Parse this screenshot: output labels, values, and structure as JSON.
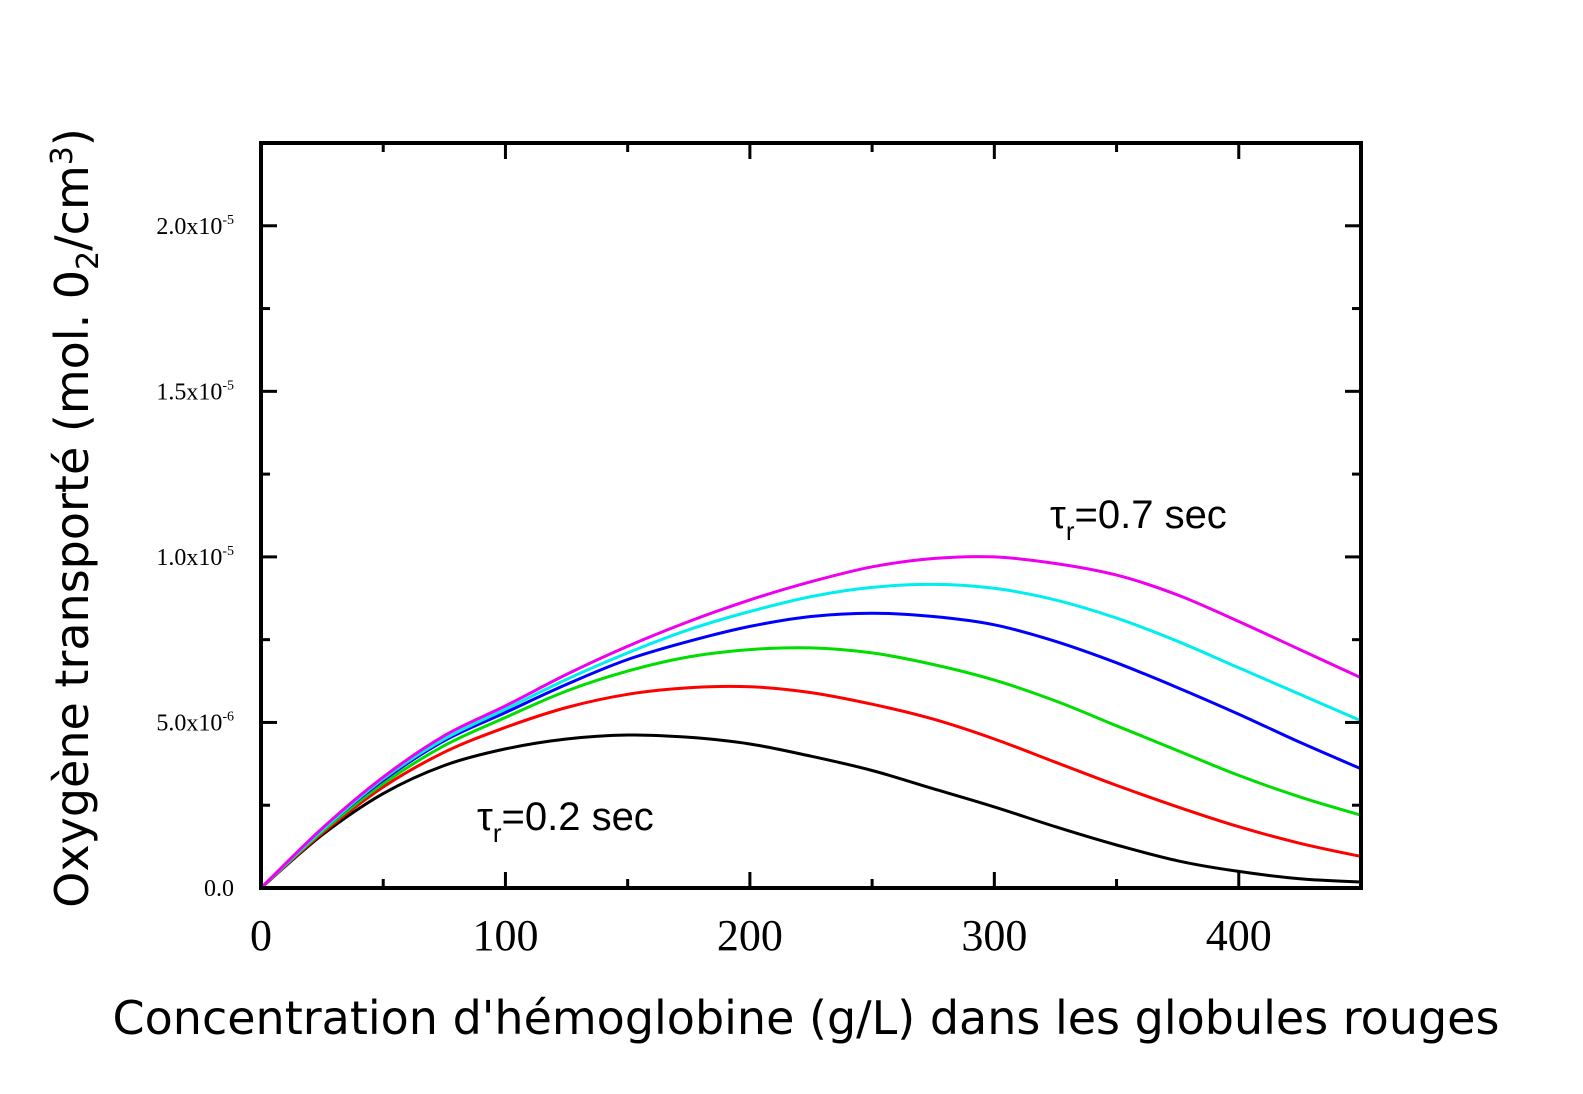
{
  "chart_data": {
    "type": "line",
    "xlabel": "Concentration d'hémoglobine (g/L) dans les globules rouges",
    "ylabel_main": "Oxygène transporté (mol. 0",
    "ylabel_sub": "2",
    "ylabel_mid": "/cm",
    "ylabel_sup": "3",
    "ylabel_end": ")",
    "xlim": [
      0,
      450
    ],
    "ylim": [
      0,
      2.25e-05
    ],
    "x_ticks": [
      {
        "value": 0,
        "label": "0"
      },
      {
        "value": 100,
        "label": "100"
      },
      {
        "value": 200,
        "label": "200"
      },
      {
        "value": 300,
        "label": "300"
      },
      {
        "value": 400,
        "label": "400"
      }
    ],
    "y_ticks": [
      {
        "value": 0,
        "base": "0.0",
        "exp": ""
      },
      {
        "value": 5e-06,
        "base": "5.0x10",
        "exp": "-6"
      },
      {
        "value": 1e-05,
        "base": "1.0x10",
        "exp": "-5"
      },
      {
        "value": 1.5e-05,
        "base": "1.5x10",
        "exp": "-5"
      },
      {
        "value": 2e-05,
        "base": "2.0x10",
        "exp": "-5"
      }
    ],
    "grid": false,
    "annotations": [
      {
        "text_tau": "τ",
        "text_sub": "r",
        "text_rest": "=0.7 sec",
        "x": 318,
        "y": 1.1e-05
      },
      {
        "text_tau": "τ",
        "text_sub": "r",
        "text_rest": "=0.2 sec",
        "x": 88,
        "y": 2.1e-06
      }
    ],
    "series": [
      {
        "color": "#000000",
        "x": [
          0,
          25,
          50,
          75,
          100,
          125,
          150,
          175,
          200,
          225,
          250,
          275,
          300,
          325,
          350,
          375,
          400,
          425,
          450
        ],
        "y": [
          0,
          1.6e-06,
          2.85e-06,
          3.7e-06,
          4.2e-06,
          4.5e-06,
          4.62e-06,
          4.55e-06,
          4.35e-06,
          3.98e-06,
          3.55e-06,
          3e-06,
          2.45e-06,
          1.85e-06,
          1.3e-06,
          8.2e-07,
          5e-07,
          2.8e-07,
          1.8e-07
        ]
      },
      {
        "color": "#ff0000",
        "x": [
          0,
          25,
          50,
          75,
          100,
          125,
          150,
          175,
          200,
          225,
          250,
          275,
          300,
          325,
          350,
          375,
          400,
          425,
          450
        ],
        "y": [
          0,
          1.65e-06,
          3.05e-06,
          4.1e-06,
          4.85e-06,
          5.45e-06,
          5.85e-06,
          6.05e-06,
          6.08e-06,
          5.9e-06,
          5.55e-06,
          5.1e-06,
          4.5e-06,
          3.8e-06,
          3.1e-06,
          2.45e-06,
          1.85e-06,
          1.35e-06,
          9.5e-07
        ]
      },
      {
        "color": "#00dd00",
        "x": [
          0,
          25,
          50,
          75,
          100,
          125,
          150,
          175,
          200,
          225,
          250,
          275,
          300,
          325,
          350,
          375,
          400,
          425,
          450
        ],
        "y": [
          0,
          1.7e-06,
          3.15e-06,
          4.3e-06,
          5.15e-06,
          5.95e-06,
          6.55e-06,
          6.98e-06,
          7.2e-06,
          7.25e-06,
          7.1e-06,
          6.75e-06,
          6.28e-06,
          5.65e-06,
          4.9e-06,
          4.15e-06,
          3.4e-06,
          2.75e-06,
          2.2e-06
        ]
      },
      {
        "color": "#0000ff",
        "x": [
          0,
          25,
          50,
          75,
          100,
          125,
          150,
          175,
          200,
          225,
          250,
          275,
          300,
          325,
          350,
          375,
          400,
          425,
          450
        ],
        "y": [
          0,
          1.75e-06,
          3.25e-06,
          4.45e-06,
          5.3e-06,
          6.15e-06,
          6.9e-06,
          7.45e-06,
          7.9e-06,
          8.2e-06,
          8.3e-06,
          8.2e-06,
          7.95e-06,
          7.45e-06,
          6.8e-06,
          6.05e-06,
          5.25e-06,
          4.4e-06,
          3.6e-06
        ]
      },
      {
        "color": "#00eeee",
        "x": [
          0,
          25,
          50,
          75,
          100,
          125,
          150,
          175,
          200,
          225,
          250,
          275,
          300,
          325,
          350,
          375,
          400,
          425,
          450
        ],
        "y": [
          0,
          1.75e-06,
          3.3e-06,
          4.5e-06,
          5.4e-06,
          6.3e-06,
          7.1e-06,
          7.8e-06,
          8.35e-06,
          8.8e-06,
          9.08e-06,
          9.17e-06,
          9.05e-06,
          8.7e-06,
          8.15e-06,
          7.45e-06,
          6.65e-06,
          5.85e-06,
          5.05e-06
        ]
      },
      {
        "color": "#ee00ee",
        "x": [
          0,
          25,
          50,
          75,
          100,
          125,
          150,
          175,
          200,
          225,
          250,
          275,
          300,
          325,
          350,
          375,
          400,
          425,
          450
        ],
        "y": [
          0,
          1.8e-06,
          3.35e-06,
          4.6e-06,
          5.5e-06,
          6.45e-06,
          7.3e-06,
          8.05e-06,
          8.7e-06,
          9.25e-06,
          9.7e-06,
          9.95e-06,
          1e-05,
          9.8e-06,
          9.45e-06,
          8.85e-06,
          8.05e-06,
          7.2e-06,
          6.35e-06
        ]
      }
    ]
  }
}
